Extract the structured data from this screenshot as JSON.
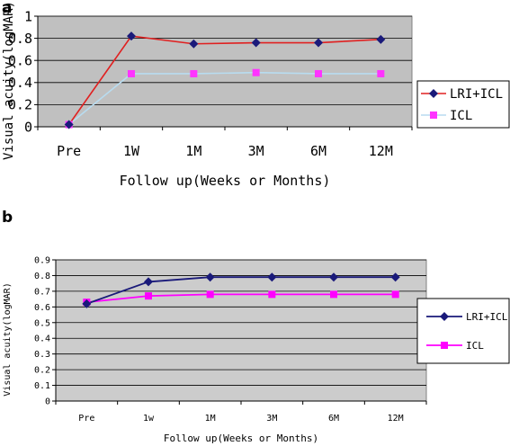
{
  "chart_data": [
    {
      "panel": "a",
      "type": "line",
      "categories": [
        "Pre",
        "1W",
        "1M",
        "3M",
        "6M",
        "12M"
      ],
      "series": [
        {
          "name": "LRI+ICL",
          "values": [
            0.02,
            0.82,
            0.75,
            0.76,
            0.76,
            0.79
          ],
          "color": "#e02020",
          "marker": "diamond",
          "marker_color": "#1a1a7a"
        },
        {
          "name": "ICL",
          "values": [
            0.02,
            0.48,
            0.48,
            0.49,
            0.48,
            0.48
          ],
          "color": "#b8dcf0",
          "marker": "square",
          "marker_color": "#ff33ff"
        }
      ],
      "xlabel": "Follow up(Weeks or Months)",
      "ylabel": "Visual acuity(logMAR)",
      "ylim": [
        0,
        1
      ],
      "yticks": [
        "0",
        "0.2",
        "0.4",
        "0.6",
        "0.8",
        "1"
      ],
      "grid": true,
      "plot_bg": "#c0c0c0",
      "legend": "right"
    },
    {
      "panel": "b",
      "type": "line",
      "categories": [
        "Pre",
        "1w",
        "1M",
        "3M",
        "6M",
        "12M"
      ],
      "series": [
        {
          "name": "LRI+ICL",
          "values": [
            0.62,
            0.76,
            0.79,
            0.79,
            0.79,
            0.79
          ],
          "color": "#1a1a7a",
          "marker": "diamond",
          "marker_color": "#1a1a7a"
        },
        {
          "name": "ICL",
          "values": [
            0.63,
            0.67,
            0.68,
            0.68,
            0.68,
            0.68
          ],
          "color": "#ff00ff",
          "marker": "square",
          "marker_color": "#ff00ff"
        }
      ],
      "xlabel": "Follow up(Weeks or Months)",
      "ylabel": "Visual acuity(logMAR)",
      "ylim": [
        0,
        0.9
      ],
      "yticks": [
        "0",
        "0.1",
        "0.2",
        "0.3",
        "0.4",
        "0.5",
        "0.6",
        "0.7",
        "0.8",
        "0.9"
      ],
      "grid": true,
      "plot_bg": "#cccccc",
      "legend": "right"
    }
  ]
}
